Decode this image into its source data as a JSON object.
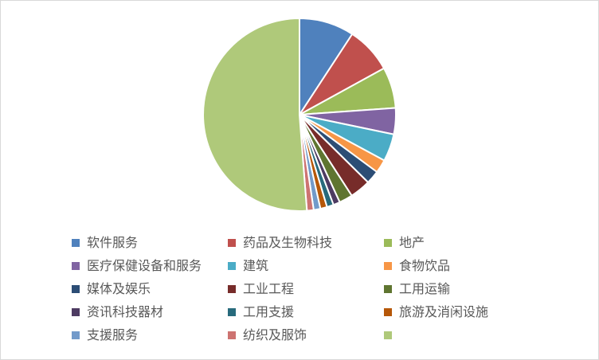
{
  "chart_data": {
    "type": "pie",
    "title": "",
    "slices": [
      {
        "label": "软件服务",
        "value": 9.0,
        "color": "#4f81bd"
      },
      {
        "label": "药品及生物科技",
        "value": 7.6,
        "color": "#c0504d"
      },
      {
        "label": "地产",
        "value": 6.7,
        "color": "#9bbb59"
      },
      {
        "label": "医疗保健设备和服务",
        "value": 4.3,
        "color": "#8064a2"
      },
      {
        "label": "建筑",
        "value": 4.5,
        "color": "#4bacc6"
      },
      {
        "label": "食物饮品",
        "value": 2.2,
        "color": "#f79646"
      },
      {
        "label": "媒体及娱乐",
        "value": 2.2,
        "color": "#2c4d75"
      },
      {
        "label": "工业工程",
        "value": 3.4,
        "color": "#772c2a"
      },
      {
        "label": "工用运输",
        "value": 2.2,
        "color": "#5f7530"
      },
      {
        "label": "资讯科技器材",
        "value": 1.1,
        "color": "#4d3b62"
      },
      {
        "label": "工用支援",
        "value": 1.1,
        "color": "#276a7c"
      },
      {
        "label": "旅游及消闲设施",
        "value": 1.1,
        "color": "#b65708"
      },
      {
        "label": "支援服务",
        "value": 1.1,
        "color": "#729aca"
      },
      {
        "label": "纺织及服饰",
        "value": 1.1,
        "color": "#cd7371"
      },
      {
        "label": "",
        "value": 50.0,
        "color": "#afc97a"
      }
    ],
    "legend": {
      "position": "bottom",
      "columns": 3
    }
  }
}
